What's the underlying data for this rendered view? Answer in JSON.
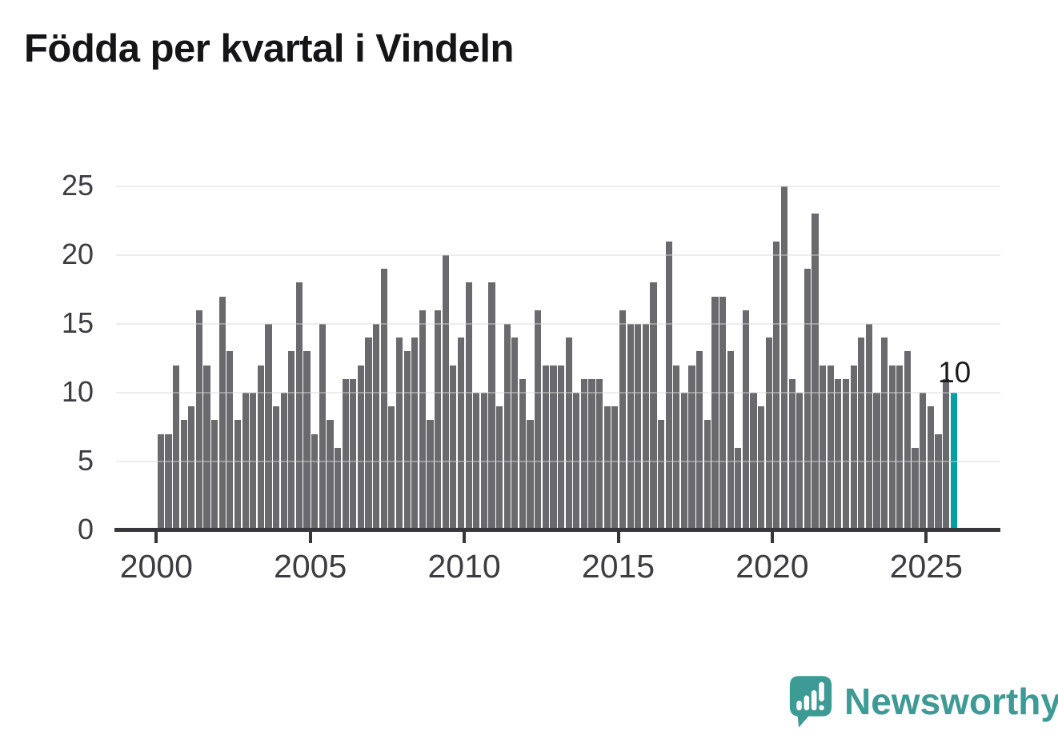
{
  "header": {
    "title": "Födda per kvartal i Vindeln"
  },
  "annotation_label": "10",
  "branding": {
    "logo_text": "Newsworthy",
    "logo_icon": "bar-chart-speech-bubble-icon",
    "logo_color": "#3e9a95"
  },
  "colors": {
    "bar": "#6a6a6e",
    "highlight": "#00a09c",
    "gridline": "#e4e4e4",
    "axis": "#37373b",
    "tick_label": "#3c3c41",
    "title": "#151517"
  },
  "chart_data": {
    "type": "bar",
    "title": "Födda per kvartal i Vindeln",
    "xlabel": "",
    "ylabel": "",
    "ylim": [
      0,
      25
    ],
    "y_ticks": [
      0,
      5,
      10,
      15,
      20,
      25
    ],
    "x_tick_labels": [
      "2000",
      "2005",
      "2010",
      "2015",
      "2020",
      "2025"
    ],
    "grid": "horizontal",
    "legend": "none",
    "highlight_index": 103,
    "annotation": {
      "text": "10",
      "target": "2025-K4"
    },
    "categories": [
      "2000-K1",
      "2000-K2",
      "2000-K3",
      "2000-K4",
      "2001-K1",
      "2001-K2",
      "2001-K3",
      "2001-K4",
      "2002-K1",
      "2002-K2",
      "2002-K3",
      "2002-K4",
      "2003-K1",
      "2003-K2",
      "2003-K3",
      "2003-K4",
      "2004-K1",
      "2004-K2",
      "2004-K3",
      "2004-K4",
      "2005-K1",
      "2005-K2",
      "2005-K3",
      "2005-K4",
      "2006-K1",
      "2006-K2",
      "2006-K3",
      "2006-K4",
      "2007-K1",
      "2007-K2",
      "2007-K3",
      "2007-K4",
      "2008-K1",
      "2008-K2",
      "2008-K3",
      "2008-K4",
      "2009-K1",
      "2009-K2",
      "2009-K3",
      "2009-K4",
      "2010-K1",
      "2010-K2",
      "2010-K3",
      "2010-K4",
      "2011-K1",
      "2011-K2",
      "2011-K3",
      "2011-K4",
      "2012-K1",
      "2012-K2",
      "2012-K3",
      "2012-K4",
      "2013-K1",
      "2013-K2",
      "2013-K3",
      "2013-K4",
      "2014-K1",
      "2014-K2",
      "2014-K3",
      "2014-K4",
      "2015-K1",
      "2015-K2",
      "2015-K3",
      "2015-K4",
      "2016-K1",
      "2016-K2",
      "2016-K3",
      "2016-K4",
      "2017-K1",
      "2017-K2",
      "2017-K3",
      "2017-K4",
      "2018-K1",
      "2018-K2",
      "2018-K3",
      "2018-K4",
      "2019-K1",
      "2019-K2",
      "2019-K3",
      "2019-K4",
      "2020-K1",
      "2020-K2",
      "2020-K3",
      "2020-K4",
      "2021-K1",
      "2021-K2",
      "2021-K3",
      "2021-K4",
      "2022-K1",
      "2022-K2",
      "2022-K3",
      "2022-K4",
      "2023-K1",
      "2023-K2",
      "2023-K3",
      "2023-K4",
      "2024-K1",
      "2024-K2",
      "2024-K3",
      "2024-K4",
      "2025-K1",
      "2025-K2",
      "2025-K3",
      "2025-K4"
    ],
    "values": [
      7,
      7,
      12,
      8,
      9,
      16,
      12,
      8,
      17,
      13,
      8,
      10,
      10,
      12,
      15,
      9,
      10,
      13,
      18,
      13,
      7,
      15,
      8,
      6,
      11,
      11,
      12,
      14,
      15,
      19,
      9,
      14,
      13,
      14,
      16,
      8,
      16,
      20,
      12,
      14,
      18,
      10,
      10,
      18,
      9,
      15,
      14,
      11,
      8,
      16,
      12,
      12,
      12,
      14,
      10,
      11,
      11,
      11,
      9,
      9,
      16,
      15,
      15,
      15,
      18,
      8,
      21,
      12,
      10,
      12,
      13,
      8,
      17,
      17,
      13,
      6,
      16,
      10,
      9,
      14,
      21,
      25,
      11,
      10,
      19,
      23,
      12,
      12,
      11,
      11,
      12,
      14,
      15,
      10,
      14,
      12,
      12,
      13,
      6,
      10,
      9,
      7,
      11,
      10
    ]
  }
}
